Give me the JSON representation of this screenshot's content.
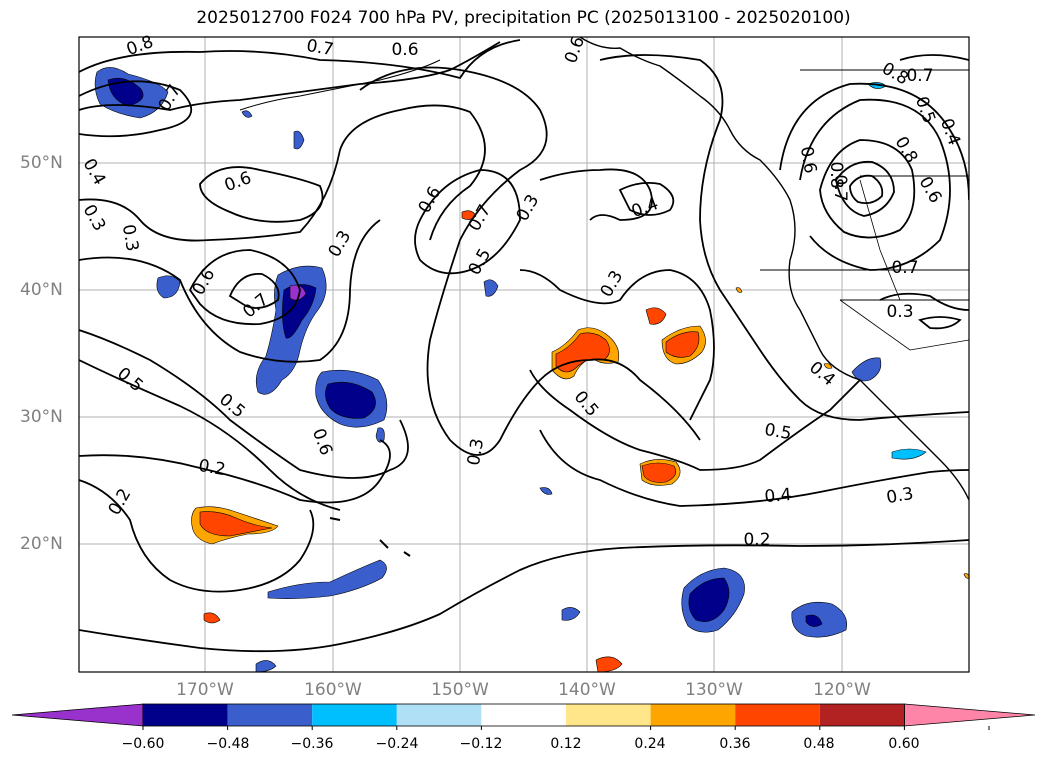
{
  "title": "2025012700 F024 700 hPa PV, precipitation PC (2025013100 - 2025020100)",
  "lat_labels": [
    "50°N",
    "40°N",
    "30°N",
    "20°N"
  ],
  "lon_labels": [
    "170°W",
    "160°W",
    "150°W",
    "140°W",
    "130°W",
    "120°W"
  ],
  "contour_labels": [
    "0.8",
    "0.7",
    "0.6",
    "0.5",
    "0.4",
    "0.3",
    "0.2"
  ],
  "colorbar": {
    "ticks": [
      "−0.60",
      "−0.48",
      "−0.36",
      "−0.24",
      "−0.12",
      "0.12",
      "0.24",
      "0.36",
      "0.48",
      "0.60"
    ],
    "colors": [
      "#9932cc",
      "#00008b",
      "#3a5fcd",
      "#00bfff",
      "#b0e0f6",
      "#ffffff",
      "#ffe68a",
      "#ffa500",
      "#ff4500",
      "#b22222",
      "#ff85a8"
    ]
  },
  "colors": {
    "contour": "#000000",
    "grid": "#b0b0b0",
    "axis_labels": "#808080"
  }
}
